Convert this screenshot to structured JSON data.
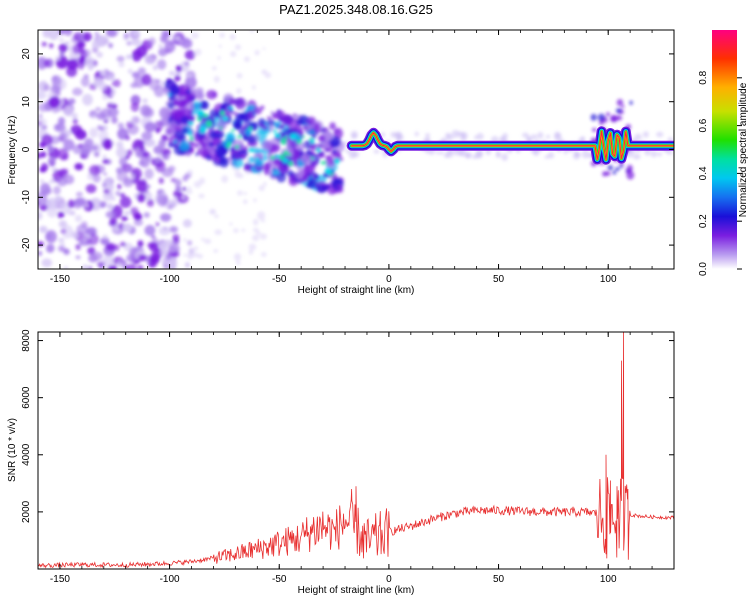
{
  "title": "PAZ1.2025.348.08.16.G25",
  "chart_data": [
    {
      "type": "heatmap",
      "xlabel": "Height of straight line (km)",
      "ylabel": "Frequency (Hz)",
      "xlim": [
        -160,
        130
      ],
      "ylim": [
        -25,
        25
      ],
      "xticks": [
        -150,
        -100,
        -50,
        0,
        50,
        100
      ],
      "yticks": [
        -20,
        -10,
        0,
        10,
        20
      ],
      "colorbar": {
        "label": "Normalized spectral amplitude",
        "range": [
          0,
          1
        ],
        "ticks": [
          "0.0",
          "0.2",
          "0.4",
          "0.6",
          "0.8"
        ],
        "colors": [
          "#ffffff",
          "#b99cf0",
          "#7a1ee0",
          "#1a10d8",
          "#1670f0",
          "#00c8f0",
          "#00e0a0",
          "#20e000",
          "#c8e000",
          "#ffb000",
          "#ff3000",
          "#ff0080"
        ]
      },
      "ridge": {
        "description_free": true,
        "x_start": -17,
        "x_end": 130,
        "freq": 0.8,
        "gap_x": [
          95,
          108
        ],
        "peak_freq_at_minus7": 3.5
      }
    },
    {
      "type": "line",
      "xlabel": "Height of straight line (km)",
      "ylabel": "SNR (10 * v/v)",
      "xlim": [
        -160,
        130
      ],
      "ylim": [
        0,
        8300
      ],
      "xticks": [
        -150,
        -100,
        -50,
        0,
        50,
        100
      ],
      "yticks": [
        2000,
        4000,
        6000,
        8000
      ],
      "series": [
        {
          "name": "SNR",
          "color": "#e83030",
          "x": [
            -160,
            -140,
            -120,
            -100,
            -90,
            -80,
            -70,
            -60,
            -50,
            -40,
            -35,
            -30,
            -25,
            -20,
            -15,
            -10,
            -5,
            0,
            10,
            20,
            30,
            40,
            50,
            60,
            70,
            80,
            90,
            95,
            100,
            103,
            105,
            107,
            108,
            110,
            115,
            120,
            130
          ],
          "values": [
            120,
            150,
            140,
            200,
            260,
            380,
            520,
            700,
            900,
            1100,
            1350,
            1500,
            1300,
            1700,
            1400,
            900,
            1100,
            1300,
            1500,
            1750,
            1950,
            2050,
            2050,
            2020,
            2000,
            1990,
            1990,
            1950,
            1700,
            1850,
            1600,
            2000,
            1700,
            1900,
            1850,
            1820,
            1800
          ],
          "spikes": [
            {
              "x": -15,
              "value": 2900
            },
            {
              "x": -17,
              "value": 2800
            },
            {
              "x": 99,
              "value": 4000
            },
            {
              "x": 101,
              "value": 3100
            },
            {
              "x": 104,
              "value": 2900
            },
            {
              "x": 106,
              "value": 7300
            },
            {
              "x": 107,
              "value": 8300
            },
            {
              "x": 109,
              "value": 2800
            }
          ]
        }
      ]
    }
  ]
}
